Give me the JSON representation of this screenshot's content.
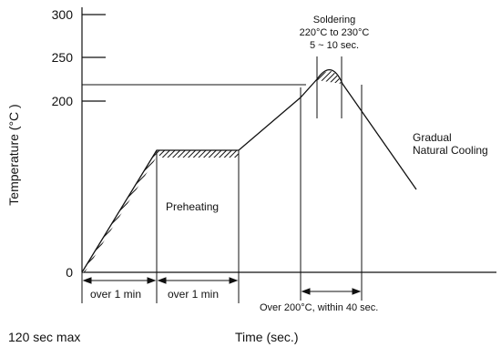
{
  "y_axis": {
    "label": "Temperature (°C )",
    "ticks": [
      {
        "value": 300,
        "label": "300"
      },
      {
        "value": 250,
        "label": "250"
      },
      {
        "value": 200,
        "label": "200"
      },
      {
        "value": 0,
        "label": "0"
      }
    ]
  },
  "x_axis": {
    "label": "Time (sec.)",
    "note": "120 sec max"
  },
  "annotations": {
    "soldering": [
      "Soldering",
      "220°C to 230°C",
      "5 ~ 10 sec."
    ],
    "cooling": [
      "Gradual",
      "Natural Cooling"
    ],
    "preheating": "Preheating",
    "seg1": "over 1 min",
    "seg2": "over 1 min",
    "over200": "Over 200°C, within 40 sec."
  },
  "profile": {
    "preheat_temp_c": 155,
    "threshold_temp_c": 220,
    "peak_temp_c": 230
  },
  "colors": {
    "ink": "#111111",
    "background": "#ffffff"
  }
}
